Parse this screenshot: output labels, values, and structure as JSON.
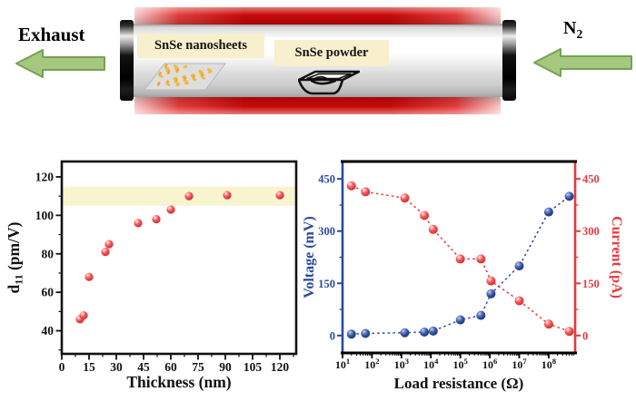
{
  "figure": {
    "furnace": {
      "exhaust_label": "Exhaust",
      "n2_base": "N",
      "n2_sub": "2",
      "nanosheets_label": "SnSe nanosheets",
      "powder_label": "SnSe powder"
    },
    "colors": {
      "heater_red": "#c90909",
      "heater_pink": "#f6caca",
      "arrow_green": "#a6c87e",
      "arrow_green_border": "#74a254",
      "label_cream": "#f8efcc",
      "voltage_blue": "#2b4a9b",
      "current_red": "#e8393d",
      "point_red": "#ee4a4e",
      "band_yellow": "#f8f4d0"
    }
  },
  "chart_data": [
    {
      "type": "scatter",
      "title": "",
      "xlabel": "Thickness (nm)",
      "ylabel": "d11 (pm/V)",
      "ylabel_parts": {
        "pre": "d",
        "sub": "11",
        "post": " (pm/V)"
      },
      "xlim": [
        0,
        129
      ],
      "ylim": [
        28,
        128
      ],
      "xticks": [
        0,
        15,
        30,
        45,
        60,
        75,
        90,
        105,
        120
      ],
      "yticks": [
        40,
        60,
        80,
        100,
        120
      ],
      "x_minor_step": 7.5,
      "y_minor_step": 10,
      "grid": false,
      "band": {
        "ymin": 105,
        "ymax": 115,
        "color": "#f8f4d0"
      },
      "point_color": "#ee4a4e",
      "x": [
        10,
        12,
        15,
        24,
        26,
        42,
        52,
        60,
        70,
        91,
        120
      ],
      "y": [
        46,
        48,
        68,
        81,
        85,
        96,
        98,
        103,
        110,
        110.5,
        110.5
      ]
    },
    {
      "type": "line",
      "title": "",
      "xlabel": "Load resistance (Ω)",
      "x_scale": "log",
      "xlim": [
        10,
        790000000
      ],
      "x_tick_base": "10",
      "x_decade_labels": [
        1,
        2,
        3,
        4,
        5,
        6,
        7,
        8
      ],
      "ylim": [
        -50,
        500
      ],
      "yticks": [
        0,
        150,
        300,
        450
      ],
      "y_minor": [
        75,
        225,
        375
      ],
      "grid": false,
      "line_style": "dashed",
      "x": [
        20,
        60,
        1300,
        6000,
        12000,
        100000,
        500000,
        1100000,
        10000000,
        100000000,
        500000000
      ],
      "series": [
        {
          "name": "Voltage (mV)",
          "axis": "left",
          "color": "#2b4a9b",
          "values": [
            4,
            6,
            8,
            10,
            13,
            45,
            58,
            120,
            200,
            355,
            400
          ]
        },
        {
          "name": "Current (pA)",
          "axis": "right",
          "color": "#e8393d",
          "values": [
            430,
            413,
            395,
            345,
            305,
            220,
            220,
            157,
            100,
            33,
            12
          ]
        }
      ]
    }
  ]
}
